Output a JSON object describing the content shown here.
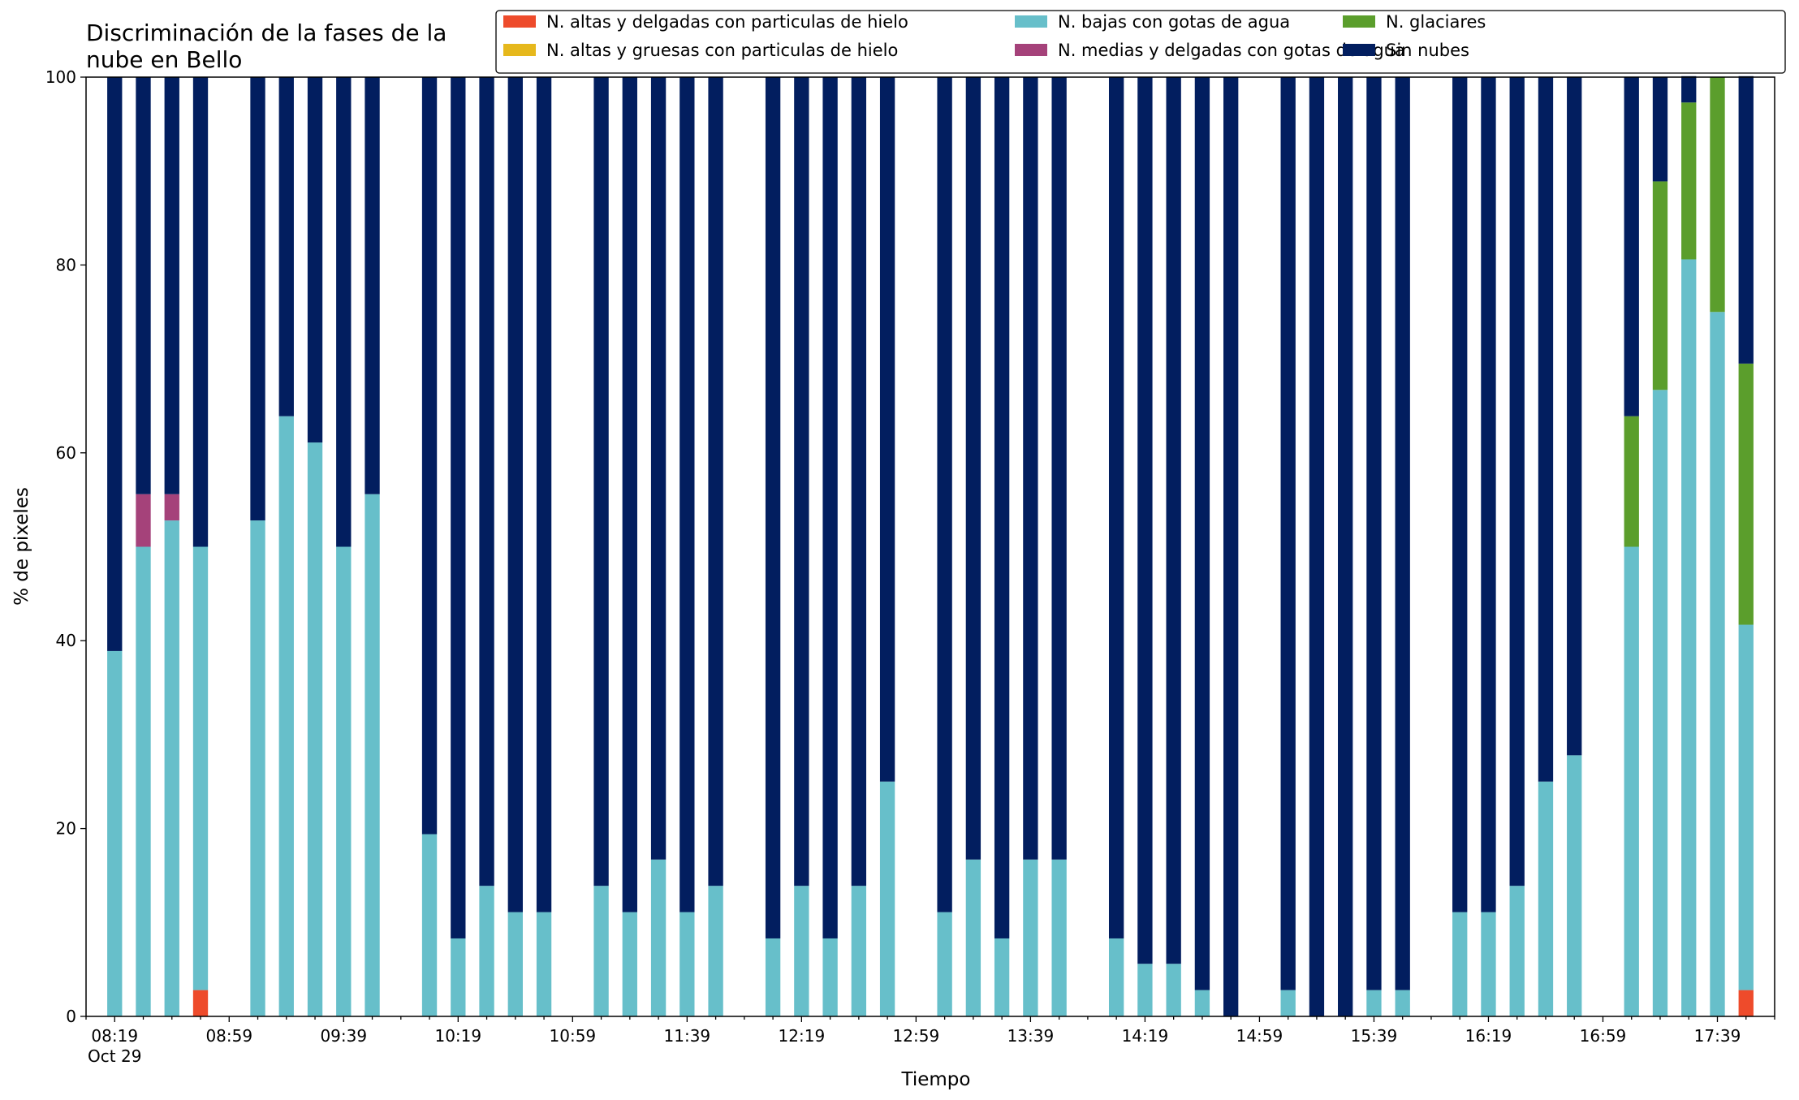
{
  "chart_data": {
    "type": "bar",
    "stacked": true,
    "title": "Discriminación de la fases de la nube en Bello",
    "title_lines": [
      "Discriminación de la fases de la",
      "nube en Bello"
    ],
    "xlabel": "Tiempo",
    "ylabel": "% de pixeles",
    "ylim": [
      0,
      100
    ],
    "yticks": [
      0,
      20,
      40,
      60,
      80,
      100
    ],
    "x_tick_labels": [
      "08:19",
      "08:59",
      "09:39",
      "10:19",
      "10:59",
      "11:39",
      "12:19",
      "12:59",
      "13:39",
      "14:19",
      "14:59",
      "15:39",
      "16:19",
      "16:59",
      "17:39"
    ],
    "x_date_label": "Oct 29",
    "grid": false,
    "legend_position": "top-right",
    "x_minutes": [
      "08:19",
      "08:29",
      "08:39",
      "08:49",
      "09:09",
      "09:19",
      "09:29",
      "09:39",
      "09:49",
      "10:09",
      "10:19",
      "10:29",
      "10:39",
      "10:49",
      "11:09",
      "11:19",
      "11:29",
      "11:39",
      "11:49",
      "12:09",
      "12:19",
      "12:29",
      "12:39",
      "12:49",
      "13:09",
      "13:19",
      "13:29",
      "13:39",
      "13:49",
      "14:09",
      "14:19",
      "14:29",
      "14:39",
      "14:49",
      "15:09",
      "15:19",
      "15:29",
      "15:39",
      "15:49",
      "16:09",
      "16:19",
      "16:29",
      "16:39",
      "16:49",
      "17:09",
      "17:19",
      "17:29",
      "17:39",
      "17:49"
    ],
    "series": [
      {
        "name": "N. altas y delgadas con particulas de hielo",
        "color": "#ee4b2b",
        "values": [
          0,
          0,
          0,
          2.8,
          0,
          0,
          0,
          0,
          0,
          0,
          0,
          0,
          0,
          0,
          0,
          0,
          0,
          0,
          0,
          0,
          0,
          0,
          0,
          0,
          0,
          0,
          0,
          0,
          0,
          0,
          0,
          0,
          0,
          0,
          0,
          0,
          0,
          0,
          0,
          0,
          0,
          0,
          0,
          0,
          0,
          0,
          0,
          0,
          2.8
        ]
      },
      {
        "name": "N. altas y gruesas con particulas de hielo",
        "color": "#e6b81c",
        "values": [
          0,
          0,
          0,
          0,
          0,
          0,
          0,
          0,
          0,
          0,
          0,
          0,
          0,
          0,
          0,
          0,
          0,
          0,
          0,
          0,
          0,
          0,
          0,
          0,
          0,
          0,
          0,
          0,
          0,
          0,
          0,
          0,
          0,
          0,
          0,
          0,
          0,
          0,
          0,
          0,
          0,
          0,
          0,
          0,
          0,
          0,
          0,
          0,
          0
        ]
      },
      {
        "name": "N. bajas con gotas de agua",
        "color": "#67bfca",
        "values": [
          38.9,
          50,
          52.8,
          47.2,
          52.8,
          63.9,
          61.1,
          50,
          55.6,
          19.4,
          8.3,
          13.9,
          11.1,
          11.1,
          13.9,
          11.1,
          16.7,
          11.1,
          13.9,
          8.3,
          13.9,
          8.3,
          13.9,
          25,
          11.1,
          16.7,
          8.3,
          16.7,
          16.7,
          8.3,
          5.6,
          5.6,
          2.8,
          0,
          2.8,
          0,
          0,
          2.8,
          2.8,
          11.1,
          11.1,
          13.9,
          25,
          27.8,
          50,
          66.7,
          80.6,
          75,
          38.9
        ]
      },
      {
        "name": "N. medias y delgadas con gotas de agua",
        "color": "#a5427a",
        "values": [
          0,
          5.6,
          2.8,
          0,
          0,
          0,
          0,
          0,
          0,
          0,
          0,
          0,
          0,
          0,
          0,
          0,
          0,
          0,
          0,
          0,
          0,
          0,
          0,
          0,
          0,
          0,
          0,
          0,
          0,
          0,
          0,
          0,
          0,
          0,
          0,
          0,
          0,
          0,
          0,
          0,
          0,
          0,
          0,
          0,
          0,
          0,
          0,
          0,
          0
        ]
      },
      {
        "name": "N. glaciares",
        "color": "#5b9e2c",
        "values": [
          0,
          0,
          0,
          0,
          0,
          0,
          0,
          0,
          0,
          0,
          0,
          0,
          0,
          0,
          0,
          0,
          0,
          0,
          0,
          0,
          0,
          0,
          0,
          0,
          0,
          0,
          0,
          0,
          0,
          0,
          0,
          0,
          0,
          0,
          0,
          0,
          0,
          0,
          0,
          0,
          0,
          0,
          0,
          0,
          13.9,
          22.2,
          16.7,
          25,
          27.8
        ]
      },
      {
        "name": "Sin nubes",
        "color": "#021e5f",
        "values": [
          61.1,
          44.4,
          44.4,
          50,
          47.2,
          36.1,
          38.9,
          50,
          44.4,
          80.6,
          91.7,
          86.1,
          88.9,
          88.9,
          86.1,
          88.9,
          83.3,
          88.9,
          86.1,
          91.7,
          86.1,
          91.7,
          86.1,
          75,
          88.9,
          83.3,
          91.7,
          83.3,
          83.3,
          91.7,
          94.4,
          94.4,
          97.2,
          100,
          97.2,
          100,
          100,
          97.2,
          97.2,
          88.9,
          88.9,
          86.1,
          75,
          72.2,
          36.1,
          11.1,
          2.8,
          0,
          30.6
        ]
      }
    ]
  }
}
